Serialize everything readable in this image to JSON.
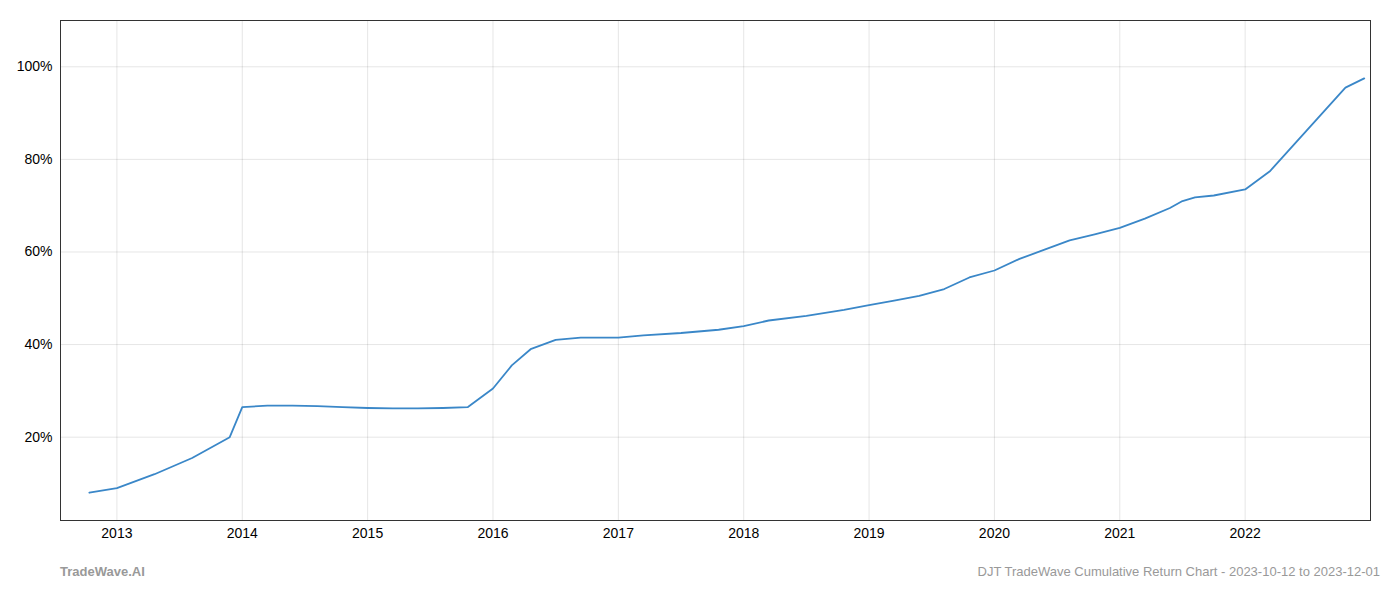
{
  "chart_data": {
    "type": "line",
    "x": [
      2012.78,
      2013.0,
      2013.3,
      2013.6,
      2013.9,
      2014.0,
      2014.2,
      2014.4,
      2014.6,
      2014.8,
      2015.0,
      2015.2,
      2015.4,
      2015.6,
      2015.8,
      2016.0,
      2016.15,
      2016.3,
      2016.5,
      2016.7,
      2017.0,
      2017.2,
      2017.5,
      2017.8,
      2018.0,
      2018.2,
      2018.5,
      2018.8,
      2019.0,
      2019.2,
      2019.4,
      2019.6,
      2019.8,
      2020.0,
      2020.2,
      2020.4,
      2020.6,
      2020.8,
      2021.0,
      2021.2,
      2021.4,
      2021.5,
      2021.6,
      2021.75,
      2022.0,
      2022.2,
      2022.4,
      2022.6,
      2022.8,
      2022.95
    ],
    "values": [
      0.08,
      0.09,
      0.12,
      0.155,
      0.2,
      0.265,
      0.268,
      0.268,
      0.267,
      0.265,
      0.263,
      0.262,
      0.262,
      0.263,
      0.265,
      0.305,
      0.355,
      0.39,
      0.41,
      0.415,
      0.415,
      0.42,
      0.425,
      0.432,
      0.44,
      0.452,
      0.462,
      0.475,
      0.485,
      0.495,
      0.505,
      0.52,
      0.545,
      0.56,
      0.585,
      0.605,
      0.625,
      0.638,
      0.652,
      0.672,
      0.695,
      0.71,
      0.718,
      0.722,
      0.735,
      0.775,
      0.835,
      0.895,
      0.955,
      0.975
    ],
    "color": "#3a87c8",
    "xlim": [
      2012.55,
      2023.0
    ],
    "xticks": [
      2013,
      2014,
      2015,
      2016,
      2017,
      2018,
      2019,
      2020,
      2021,
      2022
    ],
    "ylim": [
      0.02,
      1.1
    ],
    "yticks": [
      {
        "value": 0.2,
        "label": "20%"
      },
      {
        "value": 0.4,
        "label": "40%"
      },
      {
        "value": 0.6,
        "label": "60%"
      },
      {
        "value": 0.8,
        "label": "80%"
      },
      {
        "value": 1.0,
        "label": "100%"
      }
    ],
    "grid": true,
    "annotations": [
      "TradeWave.AI",
      "DJT TradeWave Cumulative Return Chart - 2023-10-12 to 2023-12-01"
    ]
  }
}
